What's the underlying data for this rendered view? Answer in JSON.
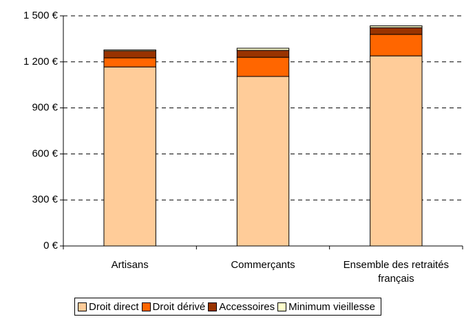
{
  "chart_data": {
    "type": "stacked_bar",
    "categories": [
      "Artisans",
      "Commerçants",
      "Ensemble des retraités français"
    ],
    "series": [
      {
        "name": "Droit direct",
        "color": "#FFCC99",
        "values": [
          1167,
          1105,
          1239
        ]
      },
      {
        "name": "Droit dérivé",
        "color": "#FF6600",
        "values": [
          59,
          125,
          140
        ]
      },
      {
        "name": "Accessoires",
        "color": "#993300",
        "values": [
          45,
          45,
          44
        ]
      },
      {
        "name": "Minimum vieillesse",
        "color": "#FFFFCC",
        "values": [
          7,
          14,
          12
        ]
      }
    ],
    "ylim": [
      0,
      1500
    ],
    "yticks": [
      {
        "value": 0,
        "label": "0 €"
      },
      {
        "value": 300,
        "label": "300 €"
      },
      {
        "value": 600,
        "label": "600 €"
      },
      {
        "value": 900,
        "label": "900 €"
      },
      {
        "value": 1200,
        "label": "1 200 €"
      },
      {
        "value": 1500,
        "label": "1 500 €"
      }
    ],
    "grid": true,
    "legend": "bottom"
  }
}
